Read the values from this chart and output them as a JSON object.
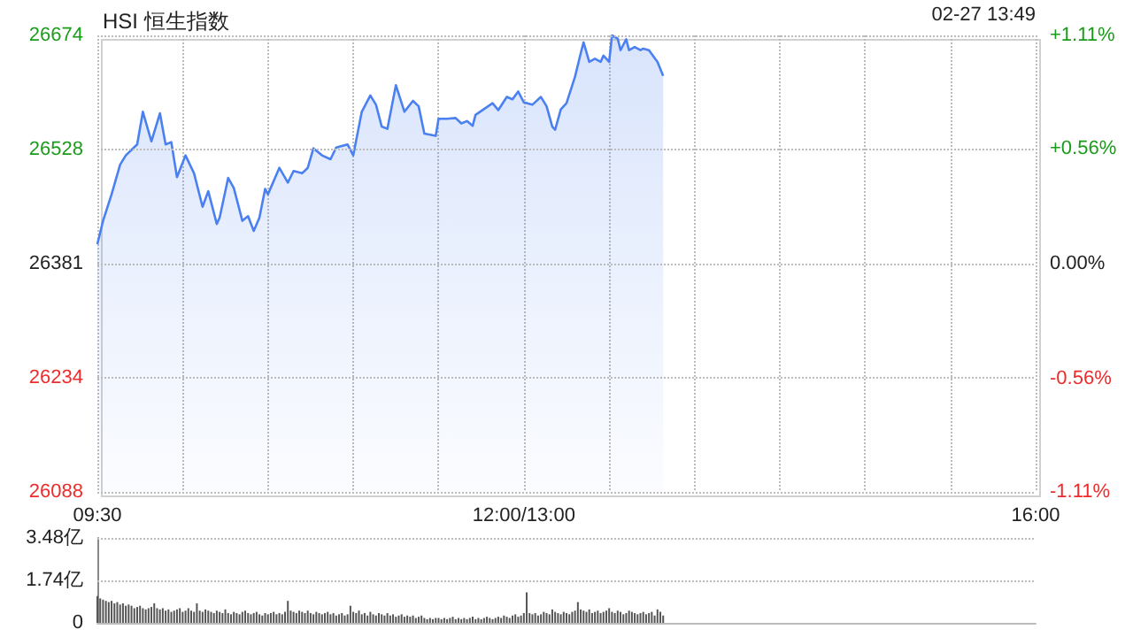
{
  "chart_data": [
    {
      "type": "area",
      "title": "HSI 恒生指数",
      "annotations": [
        "02-27 13:49"
      ],
      "categories": [
        "09:30",
        null,
        null,
        null,
        null,
        null,
        null,
        null,
        null,
        null,
        null,
        null,
        null,
        null,
        null,
        null,
        null,
        null,
        null,
        null,
        null,
        null,
        null,
        null,
        null,
        null,
        null,
        null,
        null,
        null,
        null,
        null,
        null,
        null,
        null,
        null,
        null,
        null,
        null,
        null,
        null,
        null,
        null,
        null,
        null,
        null,
        null,
        null,
        null,
        null,
        null,
        null,
        null,
        null,
        null,
        null,
        null,
        null,
        null,
        null,
        null,
        null,
        null,
        null,
        null,
        null,
        null,
        null,
        null,
        null,
        null,
        null,
        null,
        null,
        null,
        null,
        null,
        null,
        null,
        null,
        null,
        null,
        null,
        null,
        null,
        null,
        null,
        null,
        null,
        null,
        null,
        null,
        null,
        null,
        null,
        null,
        null,
        null,
        null,
        null,
        null,
        null,
        null,
        null,
        null,
        null,
        null,
        null,
        null,
        null,
        null,
        null,
        null,
        null,
        null,
        null,
        null,
        null,
        null,
        null,
        null,
        null,
        null,
        null,
        null,
        null,
        null,
        null,
        null,
        null,
        null,
        null,
        null,
        null,
        null,
        null,
        null,
        null,
        null,
        null,
        null,
        null,
        null,
        null,
        null,
        null,
        null,
        null,
        null,
        null,
        "12:00/13:00",
        null,
        null,
        null,
        null,
        null,
        null,
        null,
        null,
        null,
        null,
        null,
        null,
        null,
        null,
        null,
        null,
        null,
        null,
        null,
        null,
        null,
        null,
        null,
        null,
        null,
        null,
        null,
        null,
        null,
        null,
        null,
        null,
        null,
        null,
        null,
        null,
        null,
        null,
        null,
        null,
        null,
        null,
        null,
        null,
        null,
        null,
        null,
        null,
        null,
        null,
        null,
        null,
        null,
        null,
        null,
        null,
        null,
        null,
        null,
        null,
        null,
        null,
        null,
        null,
        null,
        null,
        null,
        null,
        null,
        null,
        null,
        null,
        null,
        null,
        null,
        null,
        null,
        null,
        null,
        null,
        null,
        null,
        null,
        null,
        null,
        null,
        null,
        null,
        null,
        null,
        null,
        null,
        null,
        null,
        null,
        null,
        null,
        null,
        null,
        null,
        null,
        null,
        null,
        null,
        null,
        null,
        null,
        null,
        null,
        null,
        null,
        null,
        null,
        null,
        null,
        null,
        null,
        null,
        null,
        null,
        null,
        null,
        null,
        null,
        null,
        null,
        null,
        null,
        null,
        null,
        null,
        null,
        null,
        null,
        null,
        null,
        null,
        null,
        null,
        null,
        null,
        null,
        null,
        null,
        null,
        null,
        null,
        null,
        null,
        null,
        null,
        null,
        null,
        null,
        null,
        null,
        null,
        null,
        null,
        null,
        null,
        null,
        null,
        null,
        null,
        null,
        null,
        null,
        null,
        null,
        null,
        null,
        null,
        null,
        null,
        null,
        null,
        null,
        null,
        "16:00"
      ],
      "series": [
        {
          "color": "#4a80f0",
          "values": [
            26406,
            null,
            26436,
            null,
            null,
            26470,
            null,
            null,
            26508,
            null,
            26520,
            null,
            null,
            null,
            26534,
            null,
            26576,
            null,
            null,
            26538,
            null,
            null,
            26574,
            null,
            26534,
            null,
            26537,
            null,
            26492,
            null,
            null,
            26520,
            null,
            null,
            26497,
            null,
            null,
            26454,
            null,
            26474,
            null,
            null,
            26432,
            26440,
            null,
            null,
            26491,
            null,
            26478,
            null,
            null,
            26436,
            null,
            26442,
            null,
            26423,
            null,
            26440,
            null,
            26477,
            26470,
            null,
            null,
            null,
            26504,
            null,
            null,
            26485,
            null,
            26500,
            null,
            null,
            26497,
            null,
            26504,
            null,
            26529,
            null,
            null,
            26520,
            null,
            null,
            26515,
            null,
            26530,
            null,
            null,
            null,
            26534,
            null,
            26520,
            null,
            null,
            26576,
            null,
            null,
            26597,
            null,
            26585,
            null,
            26557,
            null,
            26554,
            null,
            null,
            26610,
            null,
            null,
            26576,
            null,
            null,
            26590,
            null,
            26583,
            null,
            26548,
            null,
            null,
            null,
            26545,
            26567,
            null,
            null,
            26567,
            null,
            null,
            26568,
            null,
            26561,
            null,
            26564,
            null,
            26558,
            26572,
            null,
            null,
            null,
            null,
            null,
            26587,
            null,
            26578,
            null,
            null,
            26595,
            null,
            26592,
            null,
            26602,
            null,
            26588,
            null,
            null,
            26585,
            null,
            null,
            26595,
            null,
            26583,
            null,
            26557,
            26553,
            null,
            26579,
            null,
            26587,
            null,
            null,
            26621,
            null,
            26651,
            26665,
            null,
            26640,
            null,
            26644,
            null,
            26640,
            26648,
            null,
            26640,
            26674,
            null,
            26670,
            26655,
            null,
            26669,
            26655,
            null,
            26659,
            null,
            26655,
            26657,
            null,
            26655,
            null,
            null,
            26640,
            null,
            26622,
            null,
            null,
            null,
            null,
            null,
            null,
            null,
            null,
            null,
            null,
            null,
            null,
            null,
            null,
            null,
            null,
            null,
            null,
            null,
            null,
            null,
            null,
            null,
            null,
            null,
            null,
            null,
            null,
            null,
            null,
            null,
            null,
            null,
            null,
            null,
            null,
            null,
            null,
            null,
            null,
            null,
            null,
            null,
            null,
            null,
            null,
            null,
            null,
            null,
            null,
            null,
            null,
            null,
            null,
            null,
            null,
            null,
            null,
            null,
            null,
            null,
            null,
            null,
            null,
            null,
            null,
            null,
            null,
            null,
            null,
            null,
            null,
            null,
            null,
            null,
            null,
            null,
            null,
            null,
            null,
            null,
            null,
            null,
            null,
            null,
            null,
            null,
            null,
            null,
            null,
            null,
            null,
            null,
            null,
            null,
            null,
            null,
            null,
            null,
            null,
            null,
            null,
            null,
            null,
            null,
            null,
            null,
            null,
            null,
            null,
            null,
            null,
            null,
            null,
            null,
            null,
            null,
            null,
            null,
            null,
            null,
            null,
            null,
            null,
            null,
            null,
            null,
            null,
            null,
            null,
            null
          ]
        }
      ],
      "ylim": [
        26088,
        26674
      ],
      "yticks": [
        26088,
        26234,
        26381,
        26528,
        26674
      ],
      "y2lim": [
        -1.11,
        1.11
      ],
      "y2ticks": [
        {
          "value": -1.11,
          "label": "-1.11%"
        },
        {
          "value": -0.56,
          "label": "-0.56%"
        },
        {
          "value": 0,
          "label": "0.00%"
        },
        {
          "value": 0.56,
          "label": "+0.56%"
        },
        {
          "value": 1.11,
          "label": "+1.11%"
        }
      ],
      "grid": true,
      "marker": "none"
    },
    {
      "type": "bar",
      "color": "#555555",
      "categories": [
        null,
        null,
        null,
        null,
        null,
        null,
        null,
        null,
        null,
        null,
        null,
        null,
        null,
        null,
        null,
        null,
        null,
        null,
        null,
        null,
        null,
        null,
        null,
        null,
        null,
        null,
        null,
        null,
        null,
        null,
        null,
        null,
        null,
        null,
        null,
        null,
        null,
        null,
        null,
        null,
        null,
        null,
        null,
        null,
        null,
        null,
        null,
        null,
        null,
        null,
        null,
        null,
        null,
        null,
        null,
        null,
        null,
        null,
        null,
        null,
        null,
        null,
        null,
        null,
        null,
        null,
        null,
        null,
        null,
        null,
        null,
        null,
        null,
        null,
        null,
        null,
        null,
        null,
        null,
        null,
        null,
        null,
        null,
        null,
        null,
        null,
        null,
        null,
        null,
        null,
        null,
        null,
        null,
        null,
        null,
        null,
        null,
        null,
        null,
        null,
        null,
        null,
        null,
        null,
        null,
        null,
        null,
        null,
        null,
        null,
        null,
        null,
        null,
        null,
        null,
        null,
        null,
        null,
        null,
        null,
        null,
        null,
        null,
        null,
        null,
        null,
        null,
        null,
        null,
        null,
        null,
        null,
        null,
        null,
        null,
        null,
        null,
        null,
        null,
        null,
        null,
        null,
        null,
        null,
        null,
        null,
        null,
        null,
        null,
        null,
        null,
        null,
        null,
        null,
        null,
        null,
        null,
        null,
        null,
        null,
        null,
        null,
        null,
        null,
        null,
        null,
        null,
        null,
        null,
        null,
        null,
        null,
        null,
        null,
        null,
        null,
        null,
        null,
        null,
        null,
        null,
        null,
        null,
        null,
        null,
        null,
        null,
        null,
        null,
        null,
        null,
        null,
        null,
        null,
        null,
        null,
        null,
        null,
        null,
        null,
        null,
        null,
        null,
        null,
        null,
        null,
        null,
        null,
        null,
        null,
        null,
        null,
        null,
        null,
        null,
        null,
        null,
        null,
        null,
        null,
        null,
        null,
        null,
        null,
        null,
        null,
        null,
        null,
        null,
        null,
        null,
        null,
        null,
        null,
        null,
        null,
        null,
        null,
        null,
        null,
        null,
        null,
        null,
        null,
        null,
        null,
        null,
        null,
        null,
        null,
        null,
        null,
        null,
        null,
        null,
        null,
        null,
        null,
        null,
        null,
        null,
        null,
        null,
        null,
        null,
        null,
        null,
        null,
        null,
        null,
        null,
        null,
        null,
        null,
        null,
        null,
        null,
        null,
        null,
        null,
        null,
        null,
        null,
        null,
        null,
        null,
        null,
        null,
        null,
        null,
        null,
        null,
        null,
        null,
        null,
        null,
        null,
        null,
        null,
        null,
        null,
        null,
        null,
        null,
        null,
        null,
        null,
        null,
        null,
        null,
        null,
        null,
        null,
        null,
        null,
        null,
        null,
        null,
        null,
        null,
        null,
        null,
        null,
        null,
        null,
        null,
        null,
        null,
        null,
        null,
        null
      ],
      "values": [
        1.1,
        1.0,
        0.95,
        0.9,
        0.85,
        0.9,
        0.8,
        0.85,
        0.75,
        0.8,
        0.7,
        0.75,
        0.7,
        0.6,
        0.65,
        0.7,
        0.6,
        0.55,
        0.6,
        0.65,
        0.8,
        0.6,
        0.55,
        0.6,
        0.5,
        0.55,
        0.45,
        0.5,
        0.55,
        0.6,
        0.45,
        0.5,
        0.6,
        0.5,
        0.45,
        0.8,
        0.5,
        0.45,
        0.55,
        0.5,
        0.45,
        0.4,
        0.5,
        0.45,
        0.4,
        0.55,
        0.4,
        0.35,
        0.45,
        0.4,
        0.35,
        0.45,
        0.5,
        0.4,
        0.35,
        0.4,
        0.45,
        0.35,
        0.3,
        0.4,
        0.35,
        0.4,
        0.45,
        0.35,
        0.4,
        0.35,
        0.45,
        0.9,
        0.5,
        0.45,
        0.4,
        0.5,
        0.45,
        0.4,
        0.5,
        0.4,
        0.35,
        0.45,
        0.4,
        0.35,
        0.4,
        0.45,
        0.35,
        0.4,
        0.3,
        0.35,
        0.4,
        0.3,
        0.35,
        0.7,
        0.45,
        0.4,
        0.5,
        0.35,
        0.4,
        0.3,
        0.45,
        0.35,
        0.3,
        0.4,
        0.35,
        0.3,
        0.4,
        0.3,
        0.35,
        0.25,
        0.3,
        0.35,
        0.25,
        0.3,
        0.25,
        0.3,
        0.2,
        0.25,
        0.3,
        0.2,
        0.15,
        0.2,
        0.15,
        0.2,
        0.2,
        0.15,
        0.2,
        0.15,
        0.2,
        0.25,
        0.15,
        0.2,
        0.15,
        0.2,
        0.15,
        0.2,
        0.25,
        0.15,
        0.2,
        0.15,
        0.2,
        0.25,
        0.2,
        0.15,
        0.2,
        0.25,
        0.2,
        0.3,
        0.25,
        0.2,
        0.3,
        0.35,
        0.25,
        0.3,
        0.4,
        1.25,
        0.4,
        0.35,
        0.4,
        0.3,
        0.35,
        0.45,
        0.4,
        0.35,
        0.55,
        0.45,
        0.4,
        0.35,
        0.45,
        0.4,
        0.35,
        0.45,
        0.5,
        0.85,
        0.55,
        0.5,
        0.45,
        0.55,
        0.4,
        0.45,
        0.5,
        0.4,
        0.45,
        0.5,
        0.6,
        0.45,
        0.4,
        0.5,
        0.45,
        0.35,
        0.4,
        0.5,
        0.45,
        0.4,
        0.35,
        0.4,
        0.45,
        0.35,
        0.4,
        0.45,
        0.3,
        0.55,
        0.45,
        0.3,
        null,
        null,
        null,
        null,
        null,
        null,
        null,
        null,
        null,
        null,
        null,
        null,
        null,
        null,
        null,
        null,
        null,
        null,
        null,
        null,
        null,
        null,
        null,
        null,
        null,
        null,
        null,
        null,
        null,
        null,
        null,
        null,
        null,
        null,
        null,
        null,
        null,
        null,
        null,
        null,
        null,
        null,
        null,
        null,
        null,
        null,
        null,
        null,
        null,
        null,
        null,
        null,
        null,
        null,
        null,
        null,
        null,
        null,
        null,
        null,
        null,
        null,
        null,
        null,
        null,
        null,
        null,
        null,
        null,
        null,
        null,
        null,
        null,
        null,
        null,
        null,
        null,
        null,
        null,
        null,
        null,
        null,
        null,
        null,
        null,
        null,
        null,
        null,
        null,
        null,
        null,
        null,
        null,
        null,
        null,
        null,
        null,
        null,
        null,
        null,
        null,
        null,
        null,
        null,
        null,
        null,
        null,
        null,
        null,
        null,
        null,
        null,
        null,
        null,
        null,
        null,
        null,
        null,
        null,
        null,
        null,
        null,
        null,
        null,
        null,
        null,
        null,
        null,
        null,
        null,
        null
      ],
      "ylim": [
        0,
        3.48
      ],
      "yticks": [
        0,
        {
          "value": 1.74,
          "label": "1.74亿"
        },
        {
          "value": 3.48,
          "label": "3.48亿"
        }
      ],
      "grid": "y"
    }
  ]
}
